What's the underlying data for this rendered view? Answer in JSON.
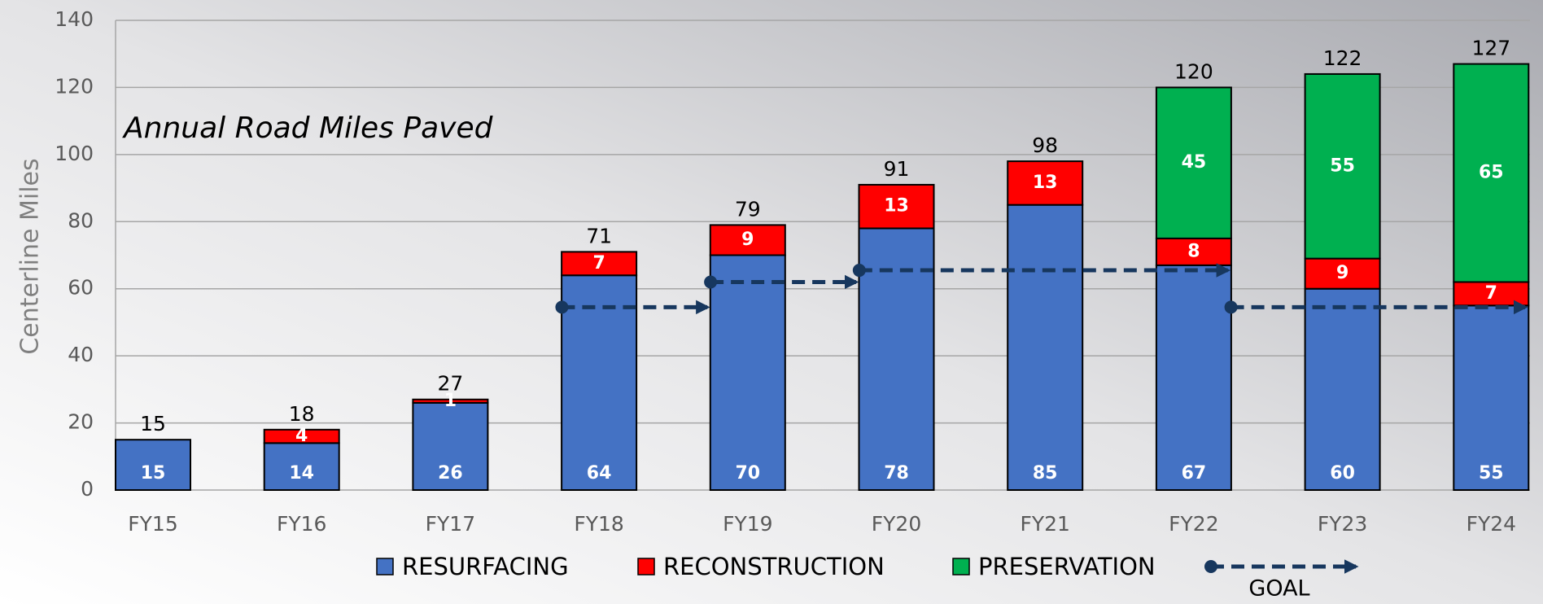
{
  "chart_data": {
    "type": "stacked_bar",
    "title": "Annual Road Miles Paved",
    "y_label": "Centerline Miles",
    "categories": [
      "FY15",
      "FY16",
      "FY17",
      "FY18",
      "FY19",
      "FY20",
      "FY21",
      "FY22",
      "FY23",
      "FY24"
    ],
    "series": [
      {
        "name": "RESURFACING",
        "color": "#4472c4",
        "values": [
          15,
          14,
          26,
          64,
          70,
          78,
          85,
          67,
          60,
          55
        ]
      },
      {
        "name": "RECONSTRUCTION",
        "color": "#ff0000",
        "values": [
          null,
          4,
          1,
          7,
          9,
          13,
          13,
          8,
          9,
          7
        ]
      },
      {
        "name": "PRESERVATION",
        "color": "#00b050",
        "values": [
          null,
          null,
          null,
          null,
          null,
          null,
          null,
          45,
          55,
          65
        ]
      }
    ],
    "totals": [
      15,
      18,
      27,
      71,
      79,
      91,
      98,
      120,
      122,
      127
    ],
    "goal": {
      "name": "GOAL",
      "color": "#17375e",
      "values": [
        54.5,
        62,
        65.5,
        54.5
      ],
      "start": [
        2.75,
        3.75,
        4.75,
        7.25
      ],
      "end": [
        3.75,
        4.75,
        7.25,
        9.25
      ]
    },
    "ylim": [
      0,
      140
    ],
    "yticks": [
      0,
      20,
      40,
      60,
      80,
      100,
      120,
      140
    ],
    "grid": true
  }
}
